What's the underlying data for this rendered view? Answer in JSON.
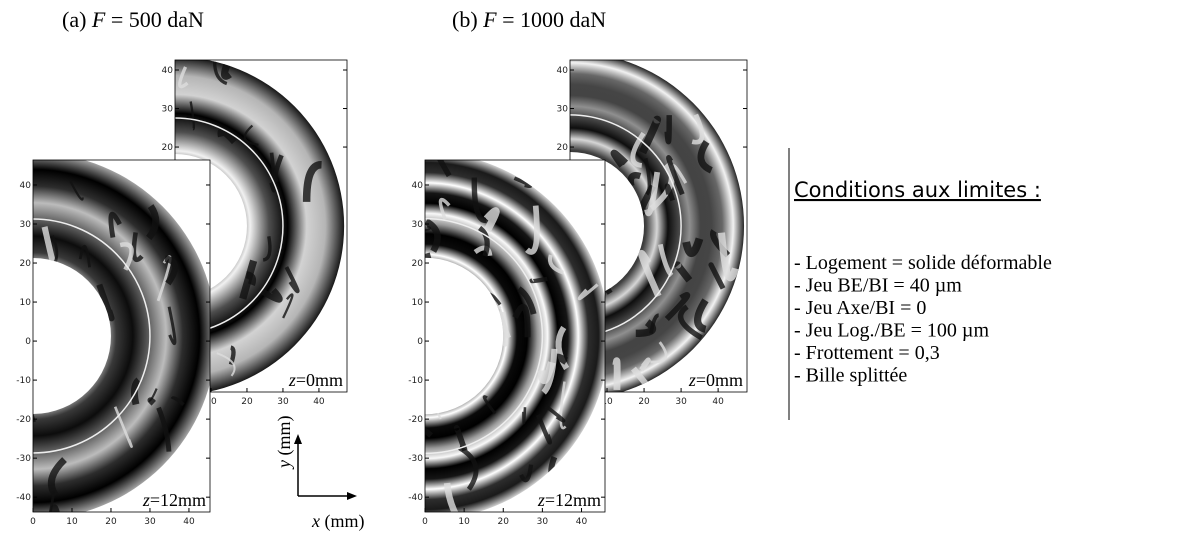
{
  "panels": [
    {
      "title": {
        "prefix": "(a)",
        "symbol": "F",
        "rest": "= 500 daN"
      },
      "plots": [
        {
          "z_symbol": "z",
          "z_rest": "=0mm",
          "xlim": [
            0,
            47.8
          ],
          "ylim": [
            -43.6,
            42.6
          ],
          "xticks": [
            10,
            20,
            30,
            40
          ],
          "yticks": [
            20,
            30,
            40
          ]
        },
        {
          "z_symbol": "z",
          "z_rest": "=12mm",
          "xlim": [
            0,
            45.4
          ],
          "ylim": [
            -43.8,
            46.4
          ],
          "xticks": [
            0,
            10,
            20,
            30,
            40
          ],
          "yticks": [
            -40,
            -30,
            -20,
            -10,
            0,
            10,
            20,
            30,
            40
          ]
        }
      ]
    },
    {
      "title": {
        "prefix": "(b)",
        "symbol": "F",
        "rest": "= 1000 daN"
      },
      "plots": [
        {
          "z_symbol": "z",
          "z_rest": "=0mm",
          "xlim": [
            0,
            47.8
          ],
          "ylim": [
            -43.6,
            42.6
          ],
          "xticks": [
            10,
            20,
            30,
            40
          ],
          "yticks": [
            20,
            30,
            40
          ]
        },
        {
          "z_symbol": "z",
          "z_rest": "=12mm",
          "xlim": [
            0,
            46
          ],
          "ylim": [
            -43.8,
            46.4
          ],
          "xticks": [
            0,
            10,
            20,
            30,
            40
          ],
          "yticks": [
            -40,
            -30,
            -20,
            -10,
            0,
            10,
            20,
            30,
            40
          ]
        }
      ]
    }
  ],
  "axes_key": {
    "y_symbol": "y",
    "y_unit": "(mm)",
    "x_symbol": "x",
    "x_unit": "(mm)"
  },
  "conditions": {
    "heading": "Conditions aux limites :",
    "items": [
      "- Logement = solide déformable",
      "- Jeu BE/BI = 40 µm",
      "- Jeu Axe/BI = 0",
      "- Jeu Log./BE = 100 µm",
      "- Frottement = 0,3",
      "- Bille splittée"
    ]
  }
}
